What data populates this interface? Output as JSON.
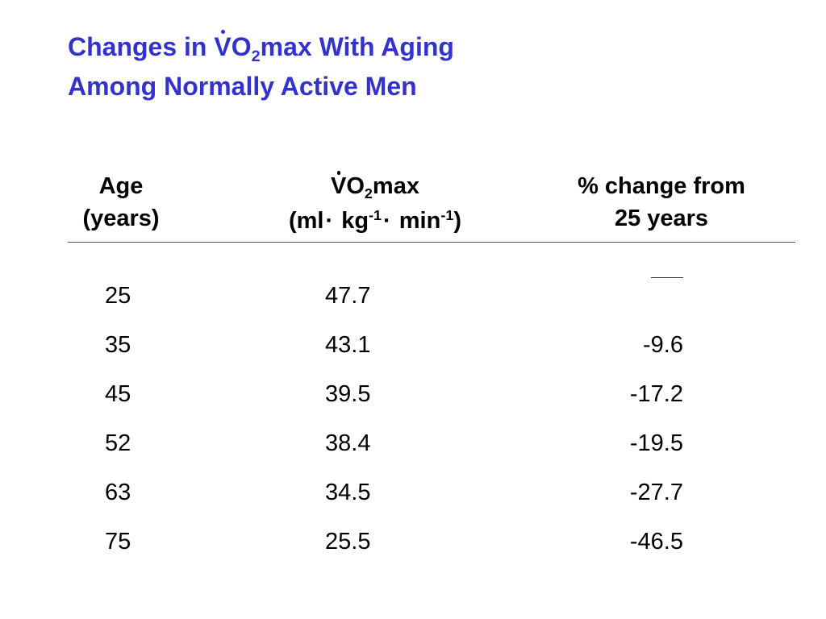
{
  "title": {
    "line1_prefix": "Changes in ",
    "v": "V",
    "o": "O",
    "sub2": "2",
    "line1_suffix": "max With Aging",
    "line2": "Among Normally Active Men",
    "color": "#3333cc"
  },
  "table": {
    "headers": {
      "age": {
        "line1": "Age",
        "line2": "(years)"
      },
      "vo2": {
        "v": "V",
        "o": "O",
        "sub2": "2",
        "max": "max",
        "open": "(ml",
        "dot1": "·",
        "kg": " kg",
        "exp1": "-1",
        "dot2": "·",
        "min": " min",
        "exp2": "-1",
        "close": ")"
      },
      "pct": {
        "line1": "% change from",
        "line2": "25 years"
      }
    },
    "rows": [
      {
        "age": "25",
        "vo2": "47.7",
        "pct": ""
      },
      {
        "age": "35",
        "vo2": "43.1",
        "pct": "-9.6"
      },
      {
        "age": "45",
        "vo2": "39.5",
        "pct": "-17.2"
      },
      {
        "age": "52",
        "vo2": "38.4",
        "pct": "-19.5"
      },
      {
        "age": "63",
        "vo2": "34.5",
        "pct": "-27.7"
      },
      {
        "age": "75",
        "vo2": "25.5",
        "pct": "-46.5"
      }
    ]
  }
}
